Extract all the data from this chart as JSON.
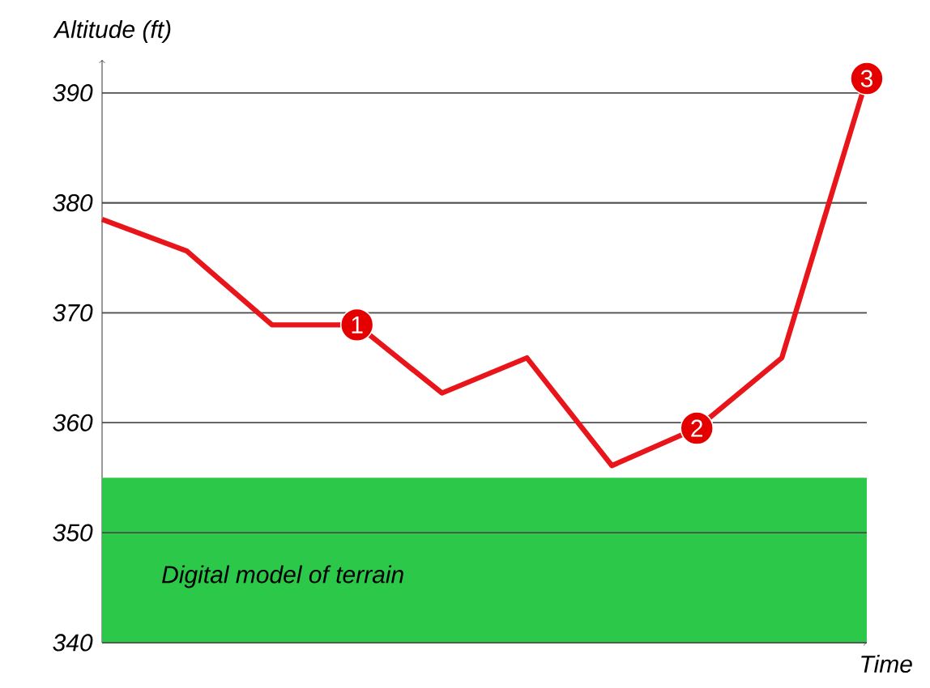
{
  "chart_data": {
    "type": "line",
    "xlabel": "Time",
    "ylabel": "Altitude (ft)",
    "categories": [
      null,
      null,
      null,
      null,
      null,
      null,
      null,
      null,
      null,
      null
    ],
    "series": [
      {
        "color": "#e8161b",
        "values": [
          378.5,
          375.6,
          368.9,
          368.9,
          362.7,
          365.9,
          356.1,
          359.5,
          365.9,
          391.3
        ]
      }
    ],
    "ylim": [
      340,
      393
    ],
    "yticks": [
      340,
      350,
      360,
      370,
      380,
      390
    ],
    "grid": "y",
    "marker": "none",
    "line_style": "solid",
    "bands": [
      {
        "axis": "y",
        "from": 340,
        "to": 355,
        "label": "Digital model of terrain",
        "color": "#2bc84a"
      }
    ],
    "annotations": [
      {
        "text": "1",
        "y": 368.9
      },
      {
        "text": "2",
        "y": 359.5
      },
      {
        "text": "3",
        "y": 391.3
      }
    ]
  }
}
